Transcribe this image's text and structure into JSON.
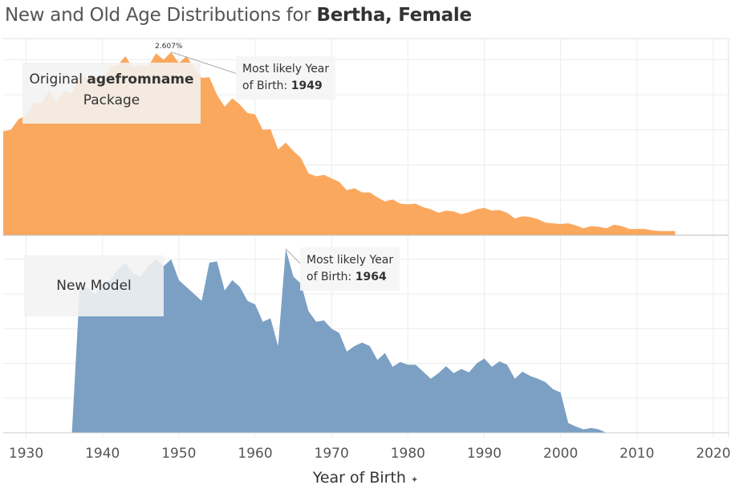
{
  "title": {
    "prefix": "New and Old Age Distributions for ",
    "name": "Bertha, Female"
  },
  "chart_data": [
    {
      "type": "area",
      "panel": "top",
      "series": [
        {
          "name": "Original agefromname Package",
          "color": "#fba85f"
        }
      ],
      "x": [
        1927,
        1928,
        1929,
        1930,
        1931,
        1932,
        1933,
        1934,
        1935,
        1936,
        1937,
        1938,
        1939,
        1940,
        1941,
        1942,
        1943,
        1944,
        1945,
        1946,
        1947,
        1948,
        1949,
        1950,
        1951,
        1952,
        1953,
        1954,
        1955,
        1956,
        1957,
        1958,
        1959,
        1960,
        1961,
        1962,
        1963,
        1964,
        1965,
        1966,
        1967,
        1968,
        1969,
        1970,
        1971,
        1972,
        1973,
        1974,
        1975,
        1976,
        1977,
        1978,
        1979,
        1980,
        1981,
        1982,
        1983,
        1984,
        1985,
        1986,
        1987,
        1988,
        1989,
        1990,
        1991,
        1992,
        1993,
        1994,
        1995,
        1996,
        1997,
        1998,
        1999,
        2000,
        2001,
        2002,
        2003,
        2004,
        2005,
        2006,
        2007,
        2008,
        2009,
        2010,
        2011,
        2012,
        2013,
        2014,
        2015
      ],
      "values": [
        1.48,
        1.5,
        1.65,
        1.71,
        1.88,
        1.88,
        2.05,
        1.9,
        2.05,
        2.02,
        2.3,
        2.23,
        2.27,
        2.2,
        2.4,
        2.42,
        2.55,
        2.38,
        2.43,
        2.4,
        2.59,
        2.5,
        2.607,
        2.45,
        2.55,
        2.39,
        2.24,
        2.25,
        2.0,
        1.83,
        1.95,
        1.86,
        1.74,
        1.72,
        1.5,
        1.51,
        1.22,
        1.32,
        1.2,
        1.1,
        0.88,
        0.84,
        0.86,
        0.81,
        0.76,
        0.64,
        0.67,
        0.61,
        0.61,
        0.54,
        0.48,
        0.51,
        0.45,
        0.44,
        0.45,
        0.4,
        0.37,
        0.32,
        0.35,
        0.34,
        0.3,
        0.33,
        0.37,
        0.39,
        0.35,
        0.36,
        0.32,
        0.24,
        0.27,
        0.26,
        0.23,
        0.18,
        0.17,
        0.16,
        0.17,
        0.14,
        0.1,
        0.13,
        0.12,
        0.1,
        0.15,
        0.13,
        0.09,
        0.09,
        0.09,
        0.07,
        0.06,
        0.06,
        0.06
      ],
      "peak_label": "2.607%",
      "annotation": {
        "line1": "Most likely Year",
        "line2_prefix": "of Birth: ",
        "line2_value": "1949"
      },
      "label_line1_prefix": "Original ",
      "label_line1_bold": "agefromname",
      "label_line2": "Package"
    },
    {
      "type": "area",
      "panel": "bottom",
      "series": [
        {
          "name": "New Model",
          "color": "#7ba0c4"
        }
      ],
      "x": [
        1935,
        1936,
        1937,
        1938,
        1939,
        1940,
        1941,
        1942,
        1943,
        1944,
        1945,
        1946,
        1947,
        1948,
        1949,
        1950,
        1951,
        1952,
        1953,
        1954,
        1955,
        1956,
        1957,
        1958,
        1959,
        1960,
        1961,
        1962,
        1963,
        1964,
        1965,
        1966,
        1967,
        1968,
        1969,
        1970,
        1971,
        1972,
        1973,
        1974,
        1975,
        1976,
        1977,
        1978,
        1979,
        1980,
        1981,
        1982,
        1983,
        1984,
        1985,
        1986,
        1987,
        1988,
        1989,
        1990,
        1991,
        1992,
        1993,
        1994,
        1995,
        1996,
        1997,
        1998,
        1999,
        2000,
        2001,
        2002,
        2003,
        2004,
        2005,
        2006
      ],
      "values": [
        0,
        0,
        2.05,
        2.1,
        2.0,
        2.15,
        2.2,
        2.35,
        2.45,
        2.3,
        2.25,
        2.4,
        2.5,
        2.4,
        2.5,
        2.2,
        2.1,
        2.0,
        1.9,
        2.45,
        2.47,
        2.05,
        2.2,
        2.1,
        1.9,
        1.85,
        1.6,
        1.65,
        1.25,
        2.65,
        2.25,
        2.15,
        1.75,
        1.6,
        1.62,
        1.5,
        1.44,
        1.17,
        1.25,
        1.3,
        1.25,
        1.05,
        1.15,
        0.95,
        1.02,
        0.98,
        0.98,
        0.88,
        0.78,
        0.86,
        0.96,
        0.86,
        0.92,
        0.87,
        1.0,
        1.07,
        0.95,
        1.03,
        0.98,
        0.78,
        0.88,
        0.82,
        0.78,
        0.73,
        0.63,
        0.58,
        0.14,
        0.09,
        0.05,
        0.07,
        0.05,
        0
      ],
      "annotation": {
        "line1": "Most likely Year",
        "line2_prefix": "of Birth: ",
        "line2_value": "1964"
      },
      "label": "New Model"
    }
  ],
  "x_axis": {
    "title": "Year of Birth",
    "pin_icon": "pin-icon",
    "ticks": [
      "1930",
      "1940",
      "1950",
      "1960",
      "1970",
      "1980",
      "1990",
      "2000",
      "2010",
      "2020"
    ],
    "range": [
      1927,
      2022
    ],
    "grid": true
  }
}
